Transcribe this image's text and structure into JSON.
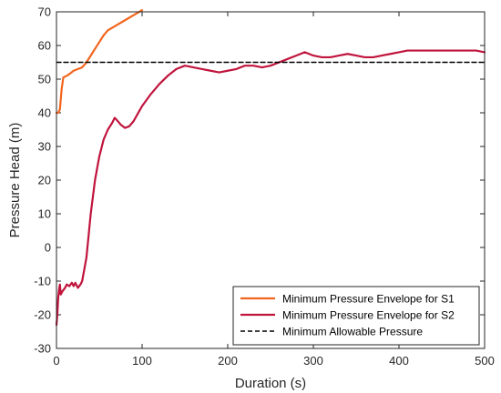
{
  "chart_data": {
    "type": "line",
    "title": "",
    "xlabel": "Duration (s)",
    "ylabel": "Pressure Head (m)",
    "xlim": [
      0,
      500
    ],
    "ylim": [
      -30,
      70
    ],
    "xticks": [
      0,
      100,
      200,
      300,
      400,
      500
    ],
    "yticks": [
      -30,
      -20,
      -10,
      0,
      10,
      20,
      30,
      40,
      50,
      60,
      70
    ],
    "grid": false,
    "legend_position": "bottom-right",
    "series": [
      {
        "name": "Minimum Pressure Envelope for S1",
        "color": "#F2651E",
        "style": "solid",
        "x": [
          0,
          2,
          4,
          6,
          8,
          12,
          15,
          20,
          25,
          30,
          35,
          40,
          45,
          50,
          55,
          60,
          70,
          80,
          90,
          100
        ],
        "y": [
          40,
          40,
          41,
          47,
          50.5,
          51,
          51.5,
          52.5,
          53,
          53.5,
          55,
          57,
          59,
          61,
          63,
          64.5,
          66,
          67.5,
          69,
          70.5
        ]
      },
      {
        "name": "Minimum Pressure Envelope for S2",
        "color": "#C0143C",
        "style": "solid",
        "x": [
          0,
          1,
          2,
          3,
          4,
          5,
          7,
          10,
          12,
          15,
          18,
          20,
          22,
          25,
          28,
          30,
          35,
          40,
          45,
          50,
          55,
          60,
          65,
          68,
          70,
          75,
          80,
          85,
          90,
          100,
          110,
          120,
          130,
          140,
          150,
          160,
          170,
          180,
          190,
          200,
          210,
          220,
          230,
          240,
          250,
          260,
          270,
          280,
          290,
          295,
          300,
          310,
          320,
          330,
          340,
          350,
          360,
          370,
          380,
          390,
          400,
          410,
          420,
          430,
          440,
          450,
          460,
          470,
          480,
          490,
          500
        ],
        "y": [
          -23,
          -20,
          -15,
          -12.5,
          -11,
          -14,
          -13,
          -12,
          -11,
          -11.5,
          -10.5,
          -11.5,
          -10.5,
          -12,
          -11,
          -10,
          -3,
          10,
          20,
          27,
          32,
          35,
          37,
          38.5,
          38,
          36.5,
          35.5,
          36,
          37.5,
          42,
          45.5,
          48.5,
          51,
          53,
          54,
          53.5,
          53,
          52.5,
          52,
          52.5,
          53,
          54,
          54,
          53.5,
          54,
          55,
          56,
          57,
          58,
          57.5,
          57,
          56.5,
          56.5,
          57,
          57.5,
          57,
          56.5,
          56.5,
          57,
          57.5,
          58,
          58.5,
          58.5,
          58.5,
          58.5,
          58.5,
          58.5,
          58.5,
          58.5,
          58.5,
          58
        ]
      },
      {
        "name": "Minimum Allowable Pressure",
        "color": "#000000",
        "style": "dashed",
        "x": [
          0,
          500
        ],
        "y": [
          55,
          55
        ]
      }
    ]
  }
}
